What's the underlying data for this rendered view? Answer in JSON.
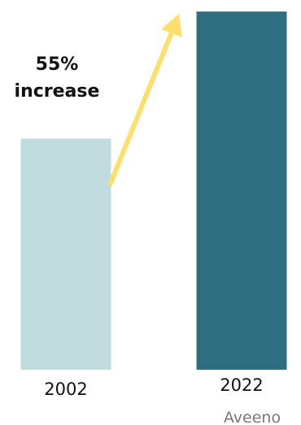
{
  "chart_data": {
    "type": "bar",
    "categories": [
      "2002",
      "2022"
    ],
    "values": [
      100,
      155
    ],
    "ylim": [
      0,
      160
    ],
    "grid": false,
    "legend": "none",
    "annotation": {
      "line1": "55%",
      "line2": "increase"
    },
    "source_label": "Aveeno",
    "colors": {
      "bar_2002": "#c0dcdf",
      "bar_2022": "#2e6e80",
      "arrow": "#fde06b"
    },
    "icons": [
      "up-arrow-icon"
    ]
  }
}
